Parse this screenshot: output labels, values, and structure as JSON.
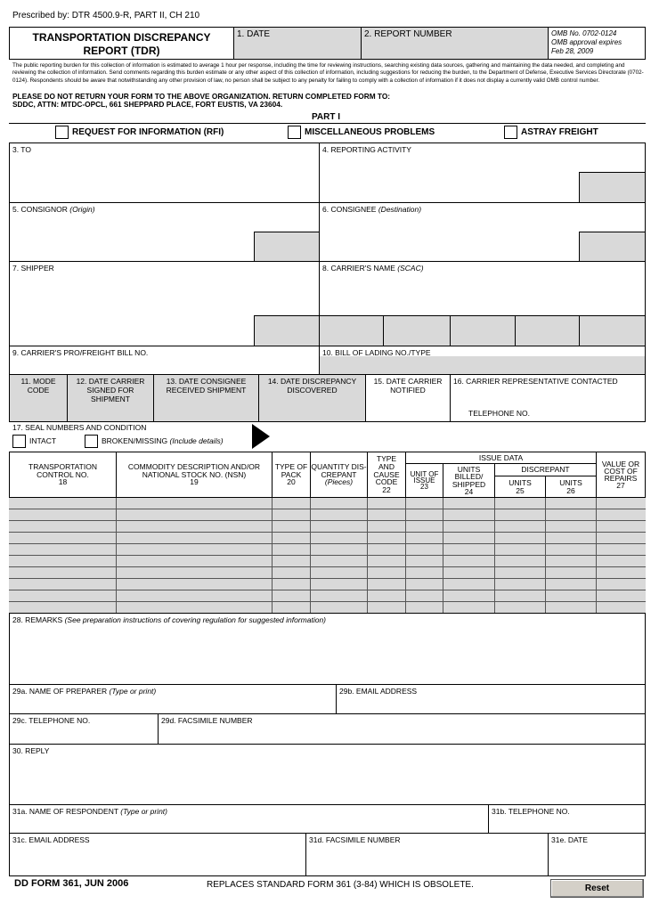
{
  "prescribed": "Prescribed by: DTR 4500.9-R, PART II, CH 210",
  "title_line1": "TRANSPORTATION DISCREPANCY",
  "title_line2": "REPORT (TDR)",
  "f1": "1. DATE",
  "f2": "2. REPORT NUMBER",
  "omb": [
    "OMB No. 0702-0124",
    "OMB approval expires",
    "Feb 28, 2009"
  ],
  "burden": "The public reporting burden for this collection of information is estimated to average 1 hour per response, including the time for reviewing instructions, searching existing data sources, gathering and maintaining the data needed, and completing and reviewing the collection of information. Send comments regarding this burden estimate or any other aspect of this collection of information, including suggestions for reducing the burden, to the Department of Defense, Executive Services Directorate (0702-0124). Respondents should be aware that notwithstanding any other provision of law, no person shall be subject to any penalty for failing to comply with a collection of information if it does not display a currently valid OMB control number.",
  "return1": "PLEASE DO NOT RETURN YOUR FORM TO THE ABOVE ORGANIZATION. RETURN COMPLETED FORM TO:",
  "return2": "SDDC, ATTN: MTDC-OPCL, 661 SHEPPARD PLACE, FORT EUSTIS, VA 23604.",
  "part": "PART I",
  "checks": [
    "REQUEST FOR INFORMATION (RFI)",
    "MISCELLANEOUS PROBLEMS",
    "ASTRAY FREIGHT"
  ],
  "f3": "3. TO",
  "f4": "4. REPORTING ACTIVITY",
  "f5": "5. CONSIGNOR",
  "f5i": "(Origin)",
  "f6": "6. CONSIGNEE",
  "f6i": "(Destination)",
  "f7": "7. SHIPPER",
  "f8": "8. CARRIER'S NAME",
  "f8i": "(SCAC)",
  "f9": "9. CARRIER'S PRO/FREIGHT BILL NO.",
  "f10": "10. BILL OF LADING NO./TYPE",
  "f11": "11. MODE CODE",
  "f12": "12. DATE CARRIER SIGNED FOR SHIPMENT",
  "f13": "13. DATE CONSIGNEE RECEIVED SHIPMENT",
  "f14": "14. DATE DISCREPANCY DISCOVERED",
  "f15": "15. DATE CARRIER NOTIFIED",
  "f16": "16. CARRIER REPRESENTATIVE CONTACTED",
  "f16t": "TELEPHONE NO.",
  "f17": "17. SEAL NUMBERS AND CONDITION",
  "intact": "INTACT",
  "broken": "BROKEN/MISSING",
  "broken_i": "(Include details)",
  "table": {
    "c18": "TRANSPORTATION CONTROL NO.",
    "n18": "18",
    "c19": "COMMODITY DESCRIPTION AND/OR NATIONAL STOCK NO. (NSN)",
    "n19": "19",
    "c20": "TYPE OF PACK",
    "n20": "20",
    "c21": "QUANTITY DIS-CREPANT",
    "n21": "(Pieces)",
    "c22": "TYPE AND CAUSE CODE",
    "n22": "22",
    "issue": "ISSUE DATA",
    "c23": "UNIT OF ISSUE",
    "n23": "23",
    "c24": "UNITS BILLED/ SHIPPED",
    "n24": "24",
    "disc": "DISCREPANT",
    "c25": "UNITS",
    "n25": "25",
    "c26": "UNITS",
    "n26": "26",
    "c27": "VALUE OR COST OF REPAIRS",
    "n27": "27"
  },
  "f28": "28. REMARKS",
  "f28i": "(See preparation instructions of covering regulation for suggested information)",
  "f29a": "29a. NAME OF PREPARER",
  "f29ai": "(Type or print)",
  "f29b": "29b. EMAIL ADDRESS",
  "f29c": "29c. TELEPHONE NO.",
  "f29d": "29d. FACSIMILE NUMBER",
  "f30": "30. REPLY",
  "f31a": "31a. NAME OF RESPONDENT",
  "f31ai": "(Type or print)",
  "f31b": "31b. TELEPHONE NO.",
  "f31c": "31c. EMAIL ADDRESS",
  "f31d": "31d. FACSIMILE NUMBER",
  "f31e": "31e. DATE",
  "form_id": "DD FORM 361, JUN 2006",
  "replaces": "REPLACES STANDARD FORM 361 (3-84) WHICH IS OBSOLETE.",
  "reset": "Reset"
}
